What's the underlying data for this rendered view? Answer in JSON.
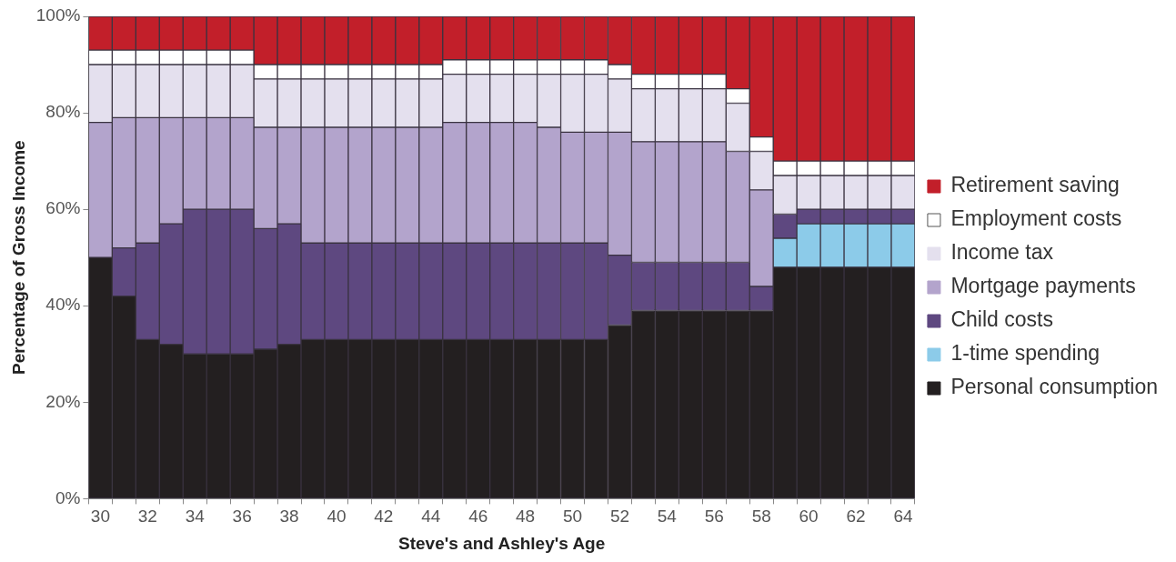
{
  "chart_data": {
    "type": "bar",
    "stacked": true,
    "xlabel": "Steve's and Ashley's Age",
    "ylabel": "Percentage of Gross Income",
    "categories": [
      "30",
      null,
      "32",
      null,
      "34",
      null,
      "36",
      null,
      "38",
      null,
      "40",
      null,
      "42",
      null,
      "44",
      null,
      "46",
      null,
      "48",
      null,
      "50",
      null,
      "52",
      null,
      "54",
      null,
      "56",
      null,
      "58",
      null,
      "60",
      null,
      "62",
      null,
      "64"
    ],
    "ylim": [
      0,
      100
    ],
    "yticks": [
      {
        "value": 0,
        "label": "0%"
      },
      {
        "value": 20,
        "label": "20%"
      },
      {
        "value": 40,
        "label": "40%"
      },
      {
        "value": 60,
        "label": "60%"
      },
      {
        "value": 80,
        "label": "80%"
      },
      {
        "value": 100,
        "label": "100%"
      }
    ],
    "grid": false,
    "legend": "right",
    "series": [
      {
        "name": "Personal consumption",
        "color": "#231f20",
        "values": [
          50,
          42,
          33,
          32,
          30,
          30,
          30,
          31,
          32,
          33,
          33,
          33,
          33,
          33,
          33,
          33,
          33,
          33,
          33,
          33,
          33,
          33,
          36,
          39,
          39,
          39,
          39,
          39,
          39,
          48,
          48,
          48,
          48,
          48,
          48
        ]
      },
      {
        "name": "1-time spending",
        "color": "#8ccbe9",
        "values": [
          0,
          0,
          0,
          0,
          0,
          0,
          0,
          0,
          0,
          0,
          0,
          0,
          0,
          0,
          0,
          0,
          0,
          0,
          0,
          0,
          0,
          0,
          0,
          0,
          0,
          0,
          0,
          0,
          0,
          6,
          9,
          9,
          9,
          9,
          9
        ]
      },
      {
        "name": "Child costs",
        "color": "#5e4880",
        "values": [
          0,
          10,
          20,
          25,
          30,
          30,
          30,
          25,
          25,
          20,
          20,
          20,
          20,
          20,
          20,
          20,
          20,
          20,
          20,
          20,
          20,
          20,
          14.5,
          10,
          10,
          10,
          10,
          10,
          5,
          5,
          3,
          3,
          3,
          3,
          3
        ]
      },
      {
        "name": "Mortgage payments",
        "color": "#b3a4cc",
        "values": [
          28,
          27,
          26,
          22,
          19,
          19,
          19,
          21,
          20,
          24,
          24,
          24,
          24,
          24,
          24,
          25,
          25,
          25,
          25,
          24,
          23,
          23,
          25.5,
          25,
          25,
          25,
          25,
          23,
          20,
          0,
          0,
          0,
          0,
          0,
          0
        ]
      },
      {
        "name": "Income tax",
        "color": "#e4e0ee",
        "values": [
          12,
          11,
          11,
          11,
          11,
          11,
          11,
          10,
          10,
          10,
          10,
          10,
          10,
          10,
          10,
          10,
          10,
          10,
          10,
          11,
          12,
          12,
          11,
          11,
          11,
          11,
          11,
          10,
          8,
          8,
          7,
          7,
          7,
          7,
          7
        ]
      },
      {
        "name": "Employment costs",
        "color": "#ffffff",
        "values": [
          3,
          3,
          3,
          3,
          3,
          3,
          3,
          3,
          3,
          3,
          3,
          3,
          3,
          3,
          3,
          3,
          3,
          3,
          3,
          3,
          3,
          3,
          3,
          3,
          3,
          3,
          3,
          3,
          3,
          3,
          3,
          3,
          3,
          3,
          3
        ]
      },
      {
        "name": "Retirement saving",
        "color": "#c21f2a",
        "values": [
          7,
          7,
          7,
          7,
          7,
          7,
          7,
          10,
          10,
          10,
          10,
          10,
          10,
          10,
          10,
          9,
          9,
          9,
          9,
          9,
          9,
          9,
          10,
          12,
          12,
          12,
          12,
          15,
          25,
          30,
          30,
          30,
          30,
          30,
          30
        ]
      }
    ]
  }
}
